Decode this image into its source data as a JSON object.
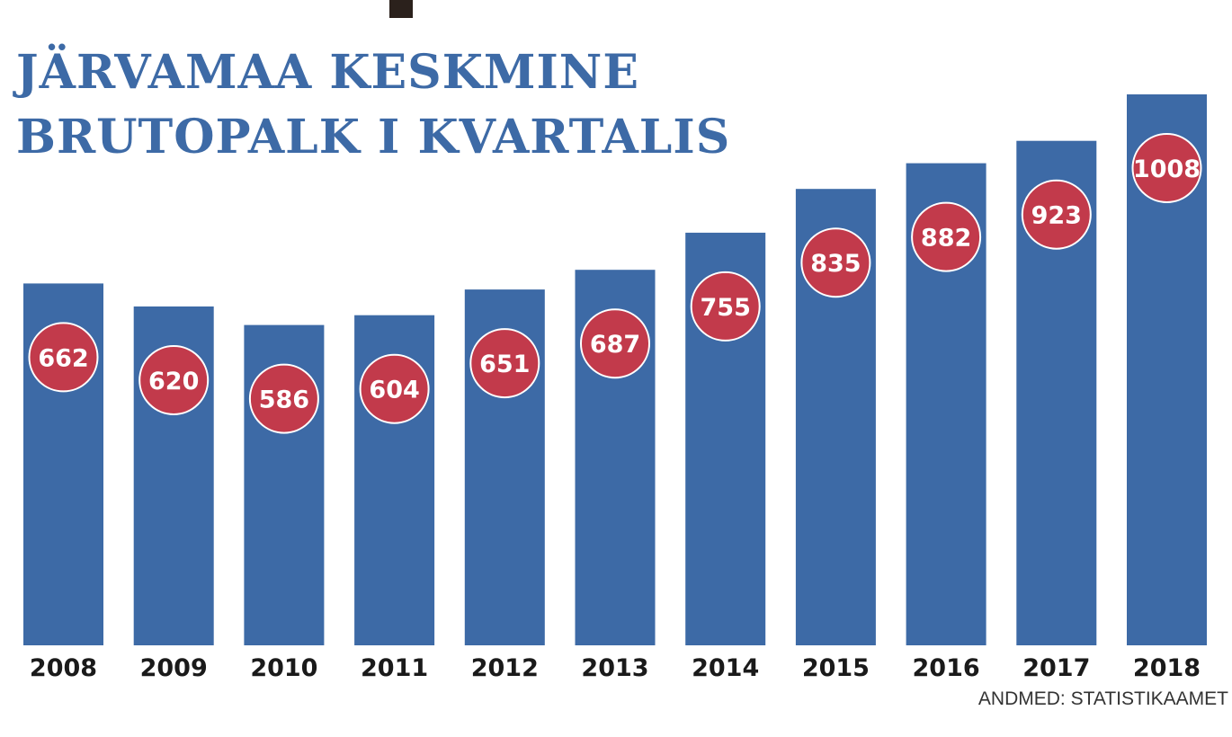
{
  "chart_data": {
    "type": "bar",
    "title_lines": [
      "JÄRVAMAA KESKMINE",
      "BRUTOPALK I KVARTALIS"
    ],
    "categories": [
      "2008",
      "2009",
      "2010",
      "2011",
      "2012",
      "2013",
      "2014",
      "2015",
      "2016",
      "2017",
      "2018"
    ],
    "values": [
      662,
      620,
      586,
      604,
      651,
      687,
      755,
      835,
      882,
      923,
      1008
    ],
    "value_labels": [
      "662",
      "620",
      "586",
      "604",
      "651",
      "687",
      "755",
      "835",
      "882",
      "923",
      "1008"
    ],
    "source": "ANDMED: STATISTIKAAMET",
    "ylim": [
      0,
      1008
    ],
    "grid": false,
    "legend": "none",
    "colors": {
      "bar": "#3d6aa6",
      "marker": "#c23a4b",
      "marker_stroke": "#ffffff",
      "title": "#3d6aa6",
      "year_text": "#1a1a1a",
      "accent_mark": "#2b211c"
    }
  }
}
